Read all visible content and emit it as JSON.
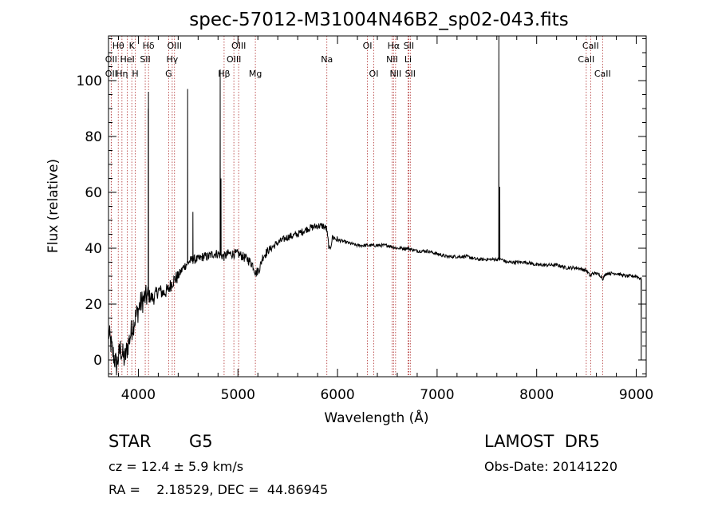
{
  "chart_data": {
    "type": "line",
    "title": "spec-57012-M31004N46B2_sp02-043.fits",
    "xlabel": "Wavelength (Å)",
    "ylabel": "Flux (relative)",
    "xlim": [
      3700,
      9100
    ],
    "ylim": [
      -6,
      116
    ],
    "xticks": [
      4000,
      5000,
      6000,
      7000,
      8000,
      9000
    ],
    "yticks": [
      0,
      20,
      40,
      60,
      80,
      100
    ],
    "grid": false,
    "line_color": "#000000",
    "marker_color": "#b03030",
    "anchors": [
      [
        3700,
        10
      ],
      [
        3740,
        3
      ],
      [
        3780,
        -2
      ],
      [
        3820,
        4
      ],
      [
        3860,
        0
      ],
      [
        3900,
        6
      ],
      [
        3940,
        12
      ],
      [
        3980,
        16
      ],
      [
        4020,
        20
      ],
      [
        4060,
        22
      ],
      [
        4100,
        23
      ],
      [
        4150,
        22
      ],
      [
        4200,
        25
      ],
      [
        4250,
        24
      ],
      [
        4300,
        25
      ],
      [
        4340,
        28
      ],
      [
        4400,
        30
      ],
      [
        4450,
        33
      ],
      [
        4500,
        35
      ],
      [
        4550,
        36
      ],
      [
        4600,
        36
      ],
      [
        4650,
        37
      ],
      [
        4700,
        37
      ],
      [
        4750,
        38
      ],
      [
        4800,
        38
      ],
      [
        4860,
        37
      ],
      [
        4900,
        38
      ],
      [
        4950,
        38
      ],
      [
        5000,
        38
      ],
      [
        5050,
        37
      ],
      [
        5100,
        36
      ],
      [
        5150,
        34
      ],
      [
        5180,
        31
      ],
      [
        5220,
        33
      ],
      [
        5250,
        37
      ],
      [
        5300,
        39
      ],
      [
        5400,
        42
      ],
      [
        5500,
        44
      ],
      [
        5600,
        45
      ],
      [
        5700,
        47
      ],
      [
        5800,
        48
      ],
      [
        5850,
        48
      ],
      [
        5890,
        47
      ],
      [
        5900,
        44
      ],
      [
        5920,
        39
      ],
      [
        5950,
        44
      ],
      [
        6000,
        43
      ],
      [
        6100,
        42
      ],
      [
        6200,
        41
      ],
      [
        6300,
        41
      ],
      [
        6400,
        41
      ],
      [
        6500,
        41
      ],
      [
        6600,
        40
      ],
      [
        6700,
        40
      ],
      [
        6800,
        39
      ],
      [
        6900,
        39
      ],
      [
        7000,
        38
      ],
      [
        7100,
        37
      ],
      [
        7200,
        37
      ],
      [
        7300,
        37
      ],
      [
        7400,
        36
      ],
      [
        7500,
        36
      ],
      [
        7550,
        36
      ],
      [
        7650,
        36
      ],
      [
        7700,
        35
      ],
      [
        7800,
        35
      ],
      [
        7900,
        35
      ],
      [
        8000,
        34
      ],
      [
        8100,
        34
      ],
      [
        8200,
        34
      ],
      [
        8300,
        33
      ],
      [
        8400,
        33
      ],
      [
        8500,
        32
      ],
      [
        8540,
        30
      ],
      [
        8560,
        31
      ],
      [
        8600,
        31
      ],
      [
        8650,
        30
      ],
      [
        8662,
        29
      ],
      [
        8700,
        31
      ],
      [
        8800,
        31
      ],
      [
        8900,
        30
      ],
      [
        9000,
        30
      ],
      [
        9050,
        29
      ]
    ],
    "emission_spikes": [
      {
        "x": 4101,
        "y": 96
      },
      {
        "x": 4100,
        "y": 90
      },
      {
        "x": 4495,
        "y": 97
      },
      {
        "x": 4548,
        "y": 53
      },
      {
        "x": 4822,
        "y": 104
      },
      {
        "x": 4830,
        "y": 65
      },
      {
        "x": 7620,
        "y": 116
      },
      {
        "x": 7630,
        "y": 62
      },
      {
        "x": 9050,
        "y": 0
      }
    ],
    "lines": [
      {
        "label": "Hθ",
        "x": 3798,
        "row": 0
      },
      {
        "label": "OII",
        "x": 3727,
        "row": 1
      },
      {
        "label": "OII",
        "x": 3727,
        "row": 2
      },
      {
        "label": "K",
        "x": 3934,
        "row": 0
      },
      {
        "label": "HeI",
        "x": 3889,
        "row": 1
      },
      {
        "label": "Hη",
        "x": 3835,
        "row": 2
      },
      {
        "label": "H",
        "x": 3969,
        "row": 2
      },
      {
        "label": "Hδ",
        "x": 4102,
        "row": 0
      },
      {
        "label": "SII",
        "x": 4069,
        "row": 1
      },
      {
        "label": "OIII",
        "x": 4363,
        "row": 0
      },
      {
        "label": "Hγ",
        "x": 4340,
        "row": 1
      },
      {
        "label": "G",
        "x": 4304,
        "row": 2
      },
      {
        "label": "Hβ",
        "x": 4861,
        "row": 2
      },
      {
        "label": "OIII",
        "x": 5007,
        "row": 0
      },
      {
        "label": "OIII",
        "x": 4959,
        "row": 1
      },
      {
        "label": "Mg",
        "x": 5175,
        "row": 2
      },
      {
        "label": "Na",
        "x": 5893,
        "row": 1
      },
      {
        "label": "OI",
        "x": 6300,
        "row": 0
      },
      {
        "label": "OI",
        "x": 6364,
        "row": 2
      },
      {
        "label": "Hα",
        "x": 6563,
        "row": 0
      },
      {
        "label": "SII",
        "x": 6716,
        "row": 0
      },
      {
        "label": "NII",
        "x": 6548,
        "row": 1
      },
      {
        "label": "Li",
        "x": 6708,
        "row": 1
      },
      {
        "label": "NII",
        "x": 6583,
        "row": 2
      },
      {
        "label": "SII",
        "x": 6731,
        "row": 2
      },
      {
        "label": "CaII",
        "x": 8542,
        "row": 0
      },
      {
        "label": "CaII",
        "x": 8498,
        "row": 1
      },
      {
        "label": "CaII",
        "x": 8662,
        "row": 2
      }
    ]
  },
  "info": {
    "class": "STAR",
    "subclass": "G5",
    "survey": "LAMOST  DR5",
    "cz": "cz = 12.4 ± 5.9 km/s",
    "obs_date": "Obs-Date: 20141220",
    "coords": "RA =    2.18529, DEC =  44.86945"
  }
}
